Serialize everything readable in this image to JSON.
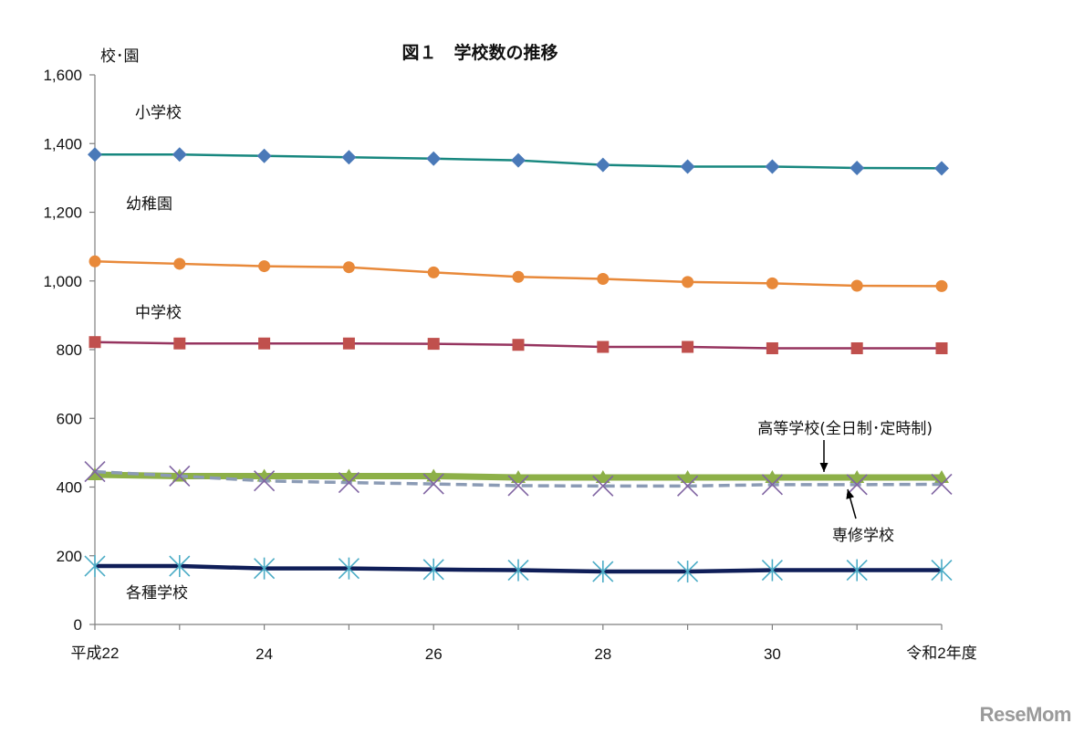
{
  "chart_data": {
    "type": "line",
    "title": "図１　学校数の推移",
    "ylabel": "校･園",
    "ylim": [
      0,
      1600
    ],
    "yticks": [
      0,
      200,
      400,
      600,
      800,
      1000,
      1200,
      1400,
      1600
    ],
    "ytick_labels": [
      "0",
      "200",
      "400",
      "600",
      "800",
      "1,000",
      "1,200",
      "1,400",
      "1,600"
    ],
    "x": [
      22,
      23,
      24,
      25,
      26,
      27,
      28,
      29,
      30,
      31,
      2
    ],
    "xtick_labels": [
      "平成22",
      "",
      "24",
      "",
      "26",
      "",
      "28",
      "",
      "30",
      "",
      "令和2年度"
    ],
    "grid": false,
    "series": [
      {
        "name": "小学校",
        "color": "#17877f",
        "marker": "diamond",
        "marker_color": "#4a79b8",
        "values": [
          1368,
          1368,
          1364,
          1360,
          1356,
          1351,
          1338,
          1333,
          1333,
          1329,
          1328
        ]
      },
      {
        "name": "幼稚園",
        "color": "#e8893a",
        "marker": "circle",
        "marker_color": "#e8893a",
        "values": [
          1057,
          1050,
          1043,
          1040,
          1025,
          1012,
          1006,
          997,
          993,
          986,
          985
        ]
      },
      {
        "name": "中学校",
        "color": "#96345f",
        "marker": "square",
        "marker_color": "#c0504d",
        "values": [
          822,
          818,
          818,
          818,
          817,
          814,
          808,
          808,
          804,
          804,
          804
        ]
      },
      {
        "name": "高等学校(全日制･定時制)",
        "color": "#8db048",
        "marker": "triangle",
        "marker_color": "#8db048",
        "values": [
          436,
          432,
          432,
          432,
          432,
          428,
          428,
          428,
          428,
          428,
          428
        ]
      },
      {
        "name": "専修学校",
        "color": "#8b9bb5",
        "marker": "x",
        "marker_color": "#8064a2",
        "dashed": true,
        "values": [
          445,
          432,
          418,
          413,
          409,
          404,
          403,
          403,
          407,
          407,
          408
        ]
      },
      {
        "name": "各種学校",
        "color": "#0f1e58",
        "marker": "asterisk",
        "marker_color": "#4bacc6",
        "values": [
          170,
          170,
          163,
          163,
          160,
          158,
          154,
          154,
          158,
          158,
          158
        ]
      }
    ]
  },
  "watermark": "ReseMom"
}
